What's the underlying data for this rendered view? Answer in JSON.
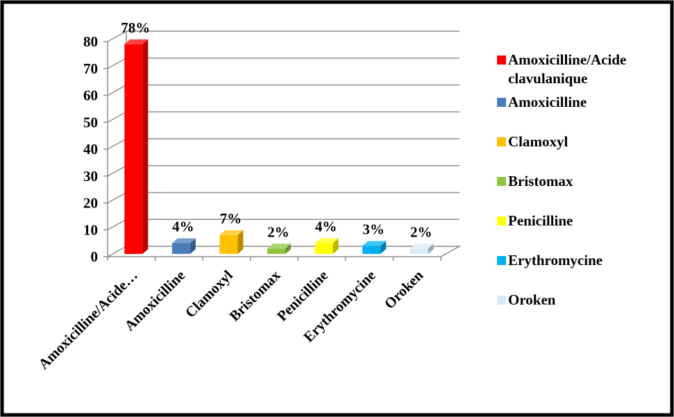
{
  "chart_data": {
    "type": "bar",
    "title": "",
    "xlabel": "",
    "ylabel": "",
    "ylim": [
      0,
      80
    ],
    "yticks": [
      0,
      10,
      20,
      30,
      40,
      50,
      60,
      70,
      80
    ],
    "grid": true,
    "three_d": true,
    "legend_position": "right",
    "categories": [
      "Amoxicilline/Acide…",
      "Amoxicilline",
      "Clamoxyl",
      "Bristomax",
      "Penicilline",
      "Erythromycine",
      "Oroken"
    ],
    "values": [
      78,
      4,
      7,
      2,
      4,
      3,
      2
    ],
    "data_labels": [
      "78%",
      "4%",
      "7%",
      "2%",
      "4%",
      "3%",
      "2%"
    ],
    "colors": [
      "#ff0000",
      "#4a7ebb",
      "#ffc000",
      "#8cc63f",
      "#ffff00",
      "#00b0f0",
      "#d6eaf8"
    ],
    "legend": [
      {
        "lines": [
          "Amoxicilline/Acide",
          "clavulanique"
        ],
        "color": "#ff0000"
      },
      {
        "lines": [
          "Amoxicilline"
        ],
        "color": "#4a7ebb"
      },
      {
        "lines": [
          "Clamoxyl"
        ],
        "color": "#ffc000"
      },
      {
        "lines": [
          "Bristomax"
        ],
        "color": "#8cc63f"
      },
      {
        "lines": [
          "Penicilline"
        ],
        "color": "#ffff00"
      },
      {
        "lines": [
          "Erythromycine"
        ],
        "color": "#00b0f0"
      },
      {
        "lines": [
          "Oroken"
        ],
        "color": "#d6eaf8"
      }
    ]
  }
}
